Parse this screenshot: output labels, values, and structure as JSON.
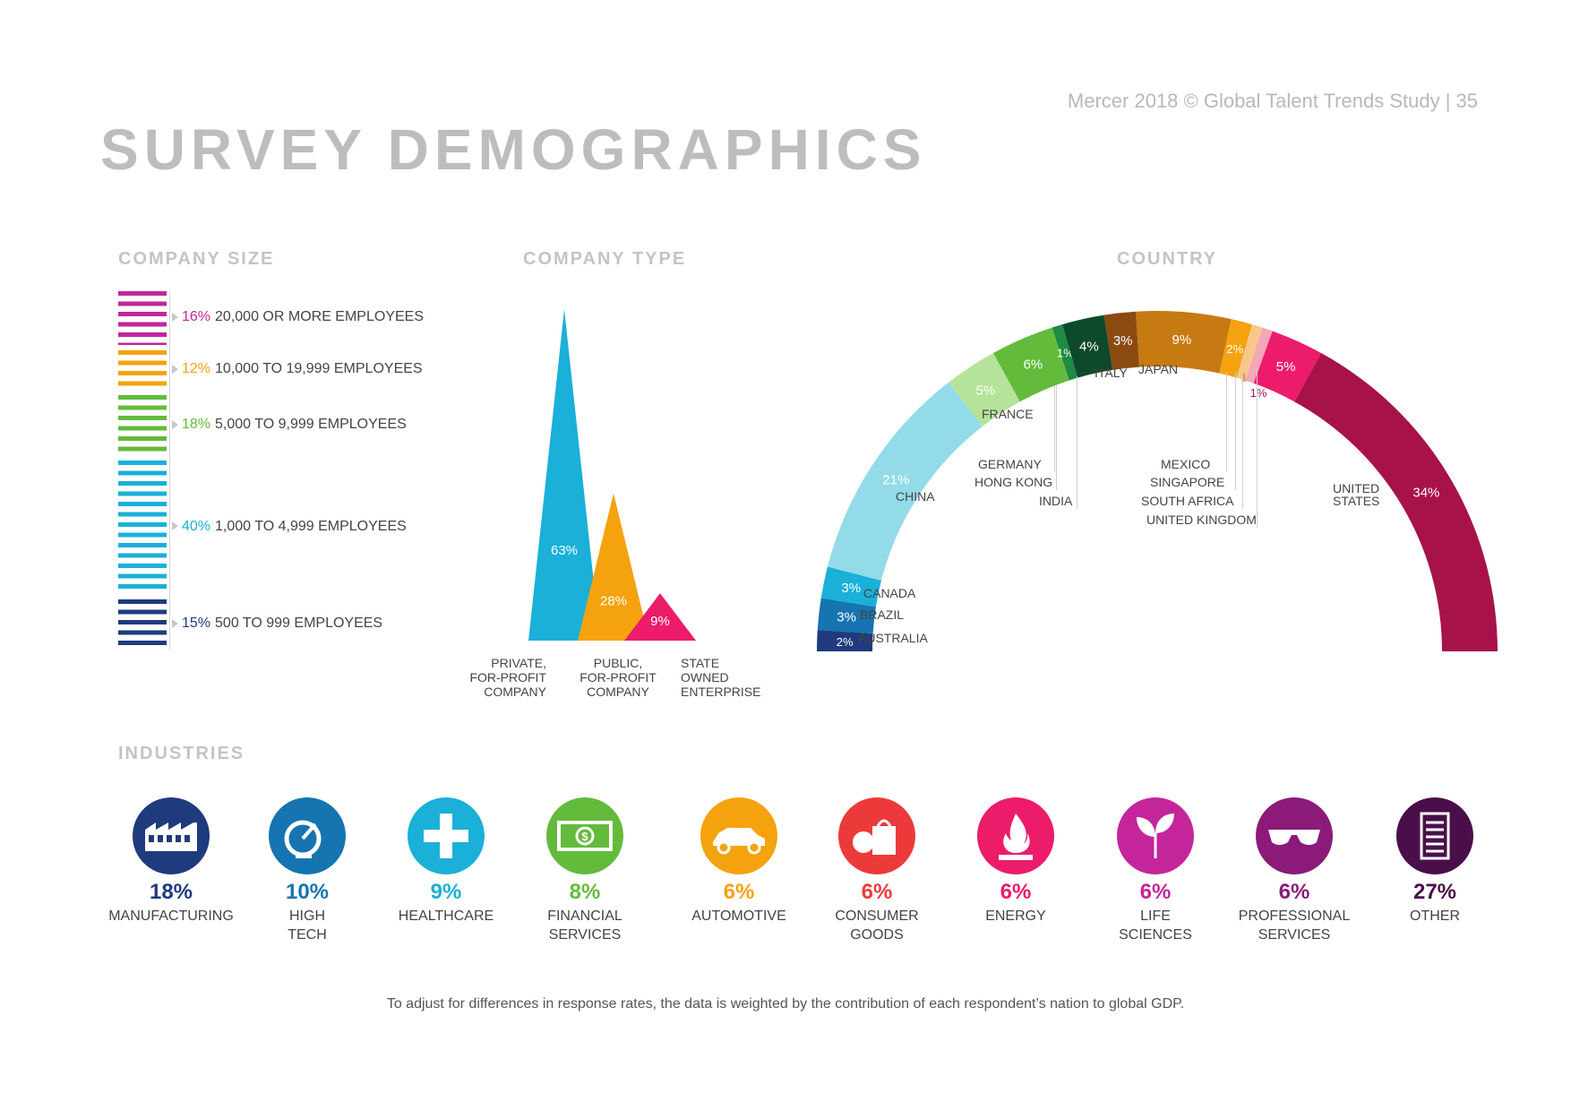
{
  "header": {
    "reference": "Mercer 2018 © Global Talent Trends Study  |  35",
    "title": "SURVEY DEMOGRAPHICS"
  },
  "sections": {
    "company_size": "COMPANY SIZE",
    "company_type": "COMPANY TYPE",
    "country": "COUNTRY",
    "industries": "INDUSTRIES"
  },
  "footnote": "To adjust for differences in response rates, the data is weighted by the contribution of each respondent’s nation to global GDP.",
  "chart_data": [
    {
      "type": "bar",
      "title": "COMPANY SIZE",
      "categories": [
        "20,000 OR MORE EMPLOYEES",
        "10,000 TO 19,999 EMPLOYEES",
        "5,000 TO 9,999 EMPLOYEES",
        "1,000 TO 4,999 EMPLOYEES",
        "500 TO 999 EMPLOYEES"
      ],
      "labels": [
        "16%",
        "12%",
        "18%",
        "40%",
        "15%"
      ],
      "values": [
        16,
        12,
        18,
        40,
        15
      ],
      "colors": [
        "#c4259a",
        "#f5a20f",
        "#63bb3c",
        "#1ab0d8",
        "#1f3b7d"
      ]
    },
    {
      "type": "bar",
      "title": "COMPANY TYPE",
      "categories": [
        [
          "PRIVATE,",
          "FOR-PROFIT",
          "COMPANY"
        ],
        [
          "PUBLIC,",
          "FOR-PROFIT",
          "COMPANY"
        ],
        [
          "STATE",
          "OWNED",
          "ENTERPRISE"
        ]
      ],
      "labels": [
        "63%",
        "28%",
        "9%"
      ],
      "values": [
        63,
        28,
        9
      ],
      "colors": [
        "#1ab0d8",
        "#f5a20f",
        "#ec1c6b"
      ]
    },
    {
      "type": "pie",
      "title": "COUNTRY",
      "slices": [
        {
          "name": "AUSTRALIA",
          "value": 2,
          "label": "2%",
          "color": "#1f3b7d"
        },
        {
          "name": "BRAZIL",
          "value": 3,
          "label": "3%",
          "color": "#1674b0"
        },
        {
          "name": "CANADA",
          "value": 3,
          "label": "3%",
          "color": "#1ab0d8"
        },
        {
          "name": "CHINA",
          "value": 21,
          "label": "21%",
          "color": "#93dbe8"
        },
        {
          "name": "FRANCE",
          "value": 5,
          "label": "5%",
          "color": "#b6e39a"
        },
        {
          "name": "GERMANY",
          "value": 6,
          "label": "6%",
          "color": "#63bb3c"
        },
        {
          "name": "HONG KONG",
          "value": 1,
          "label": "1%",
          "color": "#1e8a43"
        },
        {
          "name": "INDIA",
          "value": 4,
          "label": "4%",
          "color": "#0d4a2b"
        },
        {
          "name": "ITALY",
          "value": 3,
          "label": "3%",
          "color": "#8a4a10"
        },
        {
          "name": "JAPAN",
          "value": 9,
          "label": "9%",
          "color": "#c77a12"
        },
        {
          "name": "MEXICO",
          "value": 2,
          "label": "2%",
          "color": "#f5a20f"
        },
        {
          "name": "SINGAPORE",
          "value": 1,
          "label": "1%",
          "color": "#f7c78a"
        },
        {
          "name": "SOUTH AFRICA",
          "value": 1,
          "label": "1%",
          "color": "#f4a7b5"
        },
        {
          "name": "UNITED KINGDOM",
          "value": 5,
          "label": "5%",
          "color": "#ec1c6b"
        },
        {
          "name": "UNITED STATES",
          "value": 34,
          "label": "34%",
          "color": "#a8124a"
        }
      ],
      "country_labels": {
        "australia": "AUSTRALIA",
        "brazil": "BRAZIL",
        "canada": "CANADA",
        "china": "CHINA",
        "france": "FRANCE",
        "germany": "GERMANY",
        "hong_kong": "HONG KONG",
        "india": "INDIA",
        "italy": "ITALY",
        "japan": "JAPAN",
        "mexico": "MEXICO",
        "singapore": "SINGAPORE",
        "south_africa": "SOUTH AFRICA",
        "united_kingdom": "UNITED KINGDOM",
        "united_states_1": "UNITED",
        "united_states_2": "STATES"
      }
    }
  ],
  "industries": [
    {
      "pct": "18%",
      "label": [
        "MANUFACTURING"
      ],
      "color": "#1f3b7d",
      "icon": "factory-icon"
    },
    {
      "pct": "10%",
      "label": [
        "HIGH",
        "TECH"
      ],
      "color": "#1674b0",
      "icon": "satellite-dish-icon"
    },
    {
      "pct": "9%",
      "label": [
        "HEALTHCARE"
      ],
      "color": "#1ab0d8",
      "icon": "medical-cross-icon"
    },
    {
      "pct": "8%",
      "label": [
        "FINANCIAL",
        "SERVICES"
      ],
      "color": "#63bb3c",
      "icon": "banknote-icon"
    },
    {
      "pct": "6%",
      "label": [
        "AUTOMOTIVE"
      ],
      "color": "#f5a20f",
      "icon": "car-icon"
    },
    {
      "pct": "6%",
      "label": [
        "CONSUMER",
        "GOODS"
      ],
      "color": "#ec3a3a",
      "icon": "shopping-bag-icon"
    },
    {
      "pct": "6%",
      "label": [
        "ENERGY"
      ],
      "color": "#ec1c6b",
      "icon": "flame-icon"
    },
    {
      "pct": "6%",
      "label": [
        "LIFE",
        "SCIENCES"
      ],
      "color": "#c4259a",
      "icon": "sprout-icon"
    },
    {
      "pct": "6%",
      "label": [
        "PROFESSIONAL",
        "SERVICES"
      ],
      "color": "#8c1a78",
      "icon": "glasses-icon"
    },
    {
      "pct": "27%",
      "label": [
        "OTHER"
      ],
      "color": "#4a0f4a",
      "icon": "document-icon"
    }
  ]
}
